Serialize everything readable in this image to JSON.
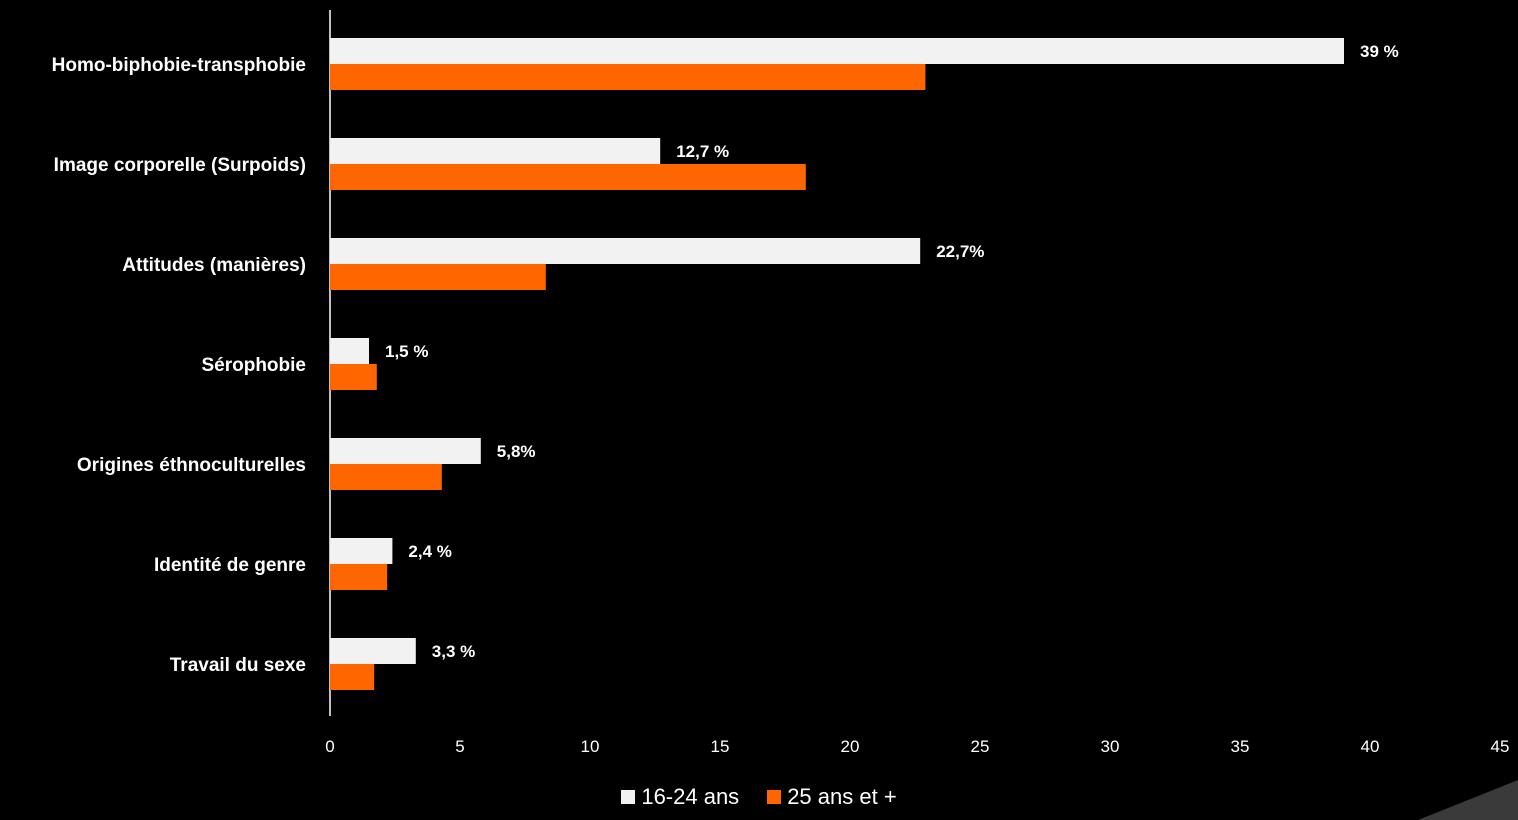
{
  "chart_data": {
    "type": "bar",
    "orientation": "horizontal",
    "categories": [
      "Homo-biphobie-transphobie",
      "Image corporelle (Surpoids)",
      "Attitudes (manières)",
      "Sérophobie",
      "Origines éthnoculturelles",
      "Identité de genre",
      "Travail du sexe"
    ],
    "series": [
      {
        "name": "16-24 ans",
        "color": "#f2f2f2",
        "values": [
          39,
          12.7,
          22.7,
          1.5,
          5.8,
          2.4,
          3.3
        ],
        "labels": [
          "39 %",
          "12,7 %",
          "22,7%",
          "1,5 %",
          "5,8%",
          "2,4 %",
          "3,3 %"
        ]
      },
      {
        "name": "25 ans et +",
        "color": "#ff6600",
        "values": [
          22.9,
          18.3,
          8.3,
          1.8,
          4.3,
          2.2,
          1.7
        ]
      }
    ],
    "xlim": [
      0,
      45
    ],
    "xticks": [
      "0",
      "5",
      "10",
      "15",
      "20",
      "25",
      "30",
      "35",
      "40",
      "45"
    ],
    "grid": false,
    "legend_position": "bottom-center"
  },
  "background_color": "#000000"
}
